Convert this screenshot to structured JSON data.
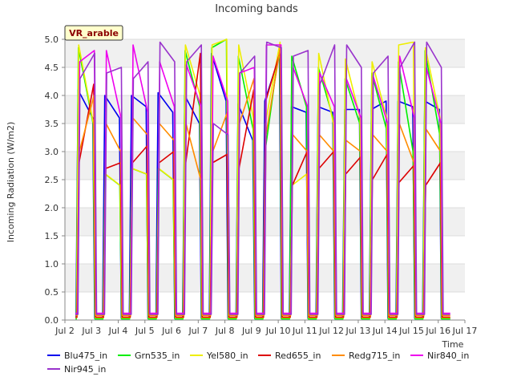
{
  "chart_data": {
    "type": "line",
    "title": "Incoming bands",
    "xlabel": "Time",
    "ylabel": "Incoming Radiation (W/m2)",
    "site_label": "VR_arable",
    "xlim": [
      2,
      17
    ],
    "ylim": [
      0,
      5
    ],
    "x_ticks": [
      2,
      3,
      4,
      5,
      6,
      7,
      8,
      9,
      10,
      11,
      12,
      13,
      14,
      15,
      16,
      17
    ],
    "x_tick_labels": [
      "Jul 2",
      "Jul 3",
      "Jul 4",
      "Jul 5",
      "Jul 6",
      "Jul 7",
      "Jul 8",
      "Jul 9",
      "Jul 10",
      "Jul 11",
      "Jul 12",
      "Jul 13",
      "Jul 14",
      "Jul 15",
      "Jul 16",
      "Jul 17"
    ],
    "y_ticks": [
      0,
      0.5,
      1.0,
      1.5,
      2.0,
      2.5,
      3.0,
      3.5,
      4.0,
      4.5,
      5.0
    ],
    "y_tick_labels": [
      "0.0",
      "0.5",
      "1.0",
      "1.5",
      "2.0",
      "2.5",
      "3.0",
      "3.5",
      "4.0",
      "4.5",
      "5.0"
    ],
    "grid": "horizontal bands",
    "legend_position": "bottom",
    "days": [
      2,
      3,
      4,
      5,
      6,
      7,
      8,
      9,
      10,
      11,
      12,
      13,
      14,
      15,
      16
    ],
    "series": [
      {
        "name": "Blu475_in",
        "color": "#0000ee",
        "night": 0.03,
        "peaks": [
          [
            4.1,
            3.6
          ],
          [
            4.0,
            3.6
          ],
          [
            4.0,
            3.8
          ],
          [
            4.05,
            3.7
          ],
          [
            4.0,
            3.5
          ],
          [
            4.75,
            3.9
          ],
          [
            3.85,
            3.2
          ],
          [
            3.9,
            4.7
          ],
          [
            3.8,
            3.7
          ],
          [
            3.8,
            3.7
          ],
          [
            3.75,
            3.75
          ],
          [
            3.75,
            3.9
          ],
          [
            3.9,
            3.8
          ],
          [
            3.9,
            3.75
          ]
        ]
      },
      {
        "name": "Grn535_in",
        "color": "#00ee00",
        "night": 0.02,
        "peaks": [
          [
            4.85,
            3.5
          ],
          [
            2.6,
            2.4
          ],
          [
            2.7,
            2.6
          ],
          [
            2.7,
            2.5
          ],
          [
            4.8,
            3.8
          ],
          [
            4.85,
            5.0
          ],
          [
            4.7,
            3.4
          ],
          [
            3.0,
            4.9
          ],
          [
            4.7,
            3.8
          ],
          [
            4.5,
            3.6
          ],
          [
            4.3,
            3.5
          ],
          [
            4.4,
            3.4
          ],
          [
            4.6,
            3.0
          ],
          [
            4.8,
            3.3
          ]
        ]
      },
      {
        "name": "Yel580_in",
        "color": "#eeee00",
        "night": 0.04,
        "peaks": [
          [
            4.9,
            3.5
          ],
          [
            2.6,
            2.4
          ],
          [
            2.7,
            2.6
          ],
          [
            2.7,
            2.5
          ],
          [
            4.9,
            4.0
          ],
          [
            4.9,
            5.0
          ],
          [
            4.9,
            3.6
          ],
          [
            3.5,
            4.95
          ],
          [
            2.4,
            2.6
          ],
          [
            4.75,
            3.5
          ],
          [
            4.65,
            3.6
          ],
          [
            4.6,
            3.6
          ],
          [
            4.9,
            4.95
          ],
          [
            4.85,
            3.6
          ]
        ]
      },
      {
        "name": "Red655_in",
        "color": "#dd0000",
        "night": 0.05,
        "peaks": [
          [
            2.8,
            4.2
          ],
          [
            2.7,
            2.8
          ],
          [
            2.8,
            3.1
          ],
          [
            2.8,
            3.0
          ],
          [
            2.8,
            4.75
          ],
          [
            2.8,
            2.95
          ],
          [
            2.7,
            4.1
          ],
          [
            3.9,
            4.8
          ],
          [
            2.4,
            3.0
          ],
          [
            2.7,
            3.0
          ],
          [
            2.6,
            2.9
          ],
          [
            2.5,
            2.95
          ],
          [
            2.45,
            2.75
          ],
          [
            2.4,
            2.8
          ]
        ]
      },
      {
        "name": "Redg715_in",
        "color": "#ff8c00",
        "night": 0.08,
        "peaks": [
          [
            3.0,
            4.0
          ],
          [
            3.5,
            3.0
          ],
          [
            3.6,
            3.3
          ],
          [
            3.5,
            3.2
          ],
          [
            3.5,
            2.5
          ],
          [
            3.0,
            3.7
          ],
          [
            3.5,
            4.3
          ],
          [
            3.3,
            4.9
          ],
          [
            3.3,
            3.0
          ],
          [
            3.3,
            3.0
          ],
          [
            3.2,
            3.0
          ],
          [
            3.3,
            3.0
          ],
          [
            3.5,
            2.8
          ],
          [
            3.4,
            3.0
          ]
        ]
      },
      {
        "name": "Nir840_in",
        "color": "#ee00ee",
        "night": 0.12,
        "peaks": [
          [
            4.6,
            4.8
          ],
          [
            4.8,
            3.6
          ],
          [
            4.9,
            3.7
          ],
          [
            4.6,
            3.8
          ],
          [
            4.55,
            3.8
          ],
          [
            4.7,
            3.9
          ],
          [
            4.4,
            4.5
          ],
          [
            4.9,
            4.9
          ],
          [
            4.5,
            3.8
          ],
          [
            4.4,
            3.8
          ],
          [
            4.3,
            3.6
          ],
          [
            4.35,
            3.5
          ],
          [
            4.7,
            3.6
          ],
          [
            4.5,
            3.5
          ]
        ]
      },
      {
        "name": "Nir945_in",
        "color": "#9933cc",
        "night": 0.1,
        "peaks": [
          [
            4.3,
            4.75
          ],
          [
            4.4,
            4.5
          ],
          [
            4.3,
            4.6
          ],
          [
            4.95,
            4.6
          ],
          [
            4.6,
            4.9
          ],
          [
            3.5,
            3.3
          ],
          [
            4.4,
            4.7
          ],
          [
            4.95,
            4.85
          ],
          [
            4.7,
            4.8
          ],
          [
            4.2,
            4.9
          ],
          [
            4.9,
            4.5
          ],
          [
            4.4,
            4.7
          ],
          [
            4.5,
            4.95
          ],
          [
            4.95,
            4.5
          ]
        ]
      }
    ]
  }
}
